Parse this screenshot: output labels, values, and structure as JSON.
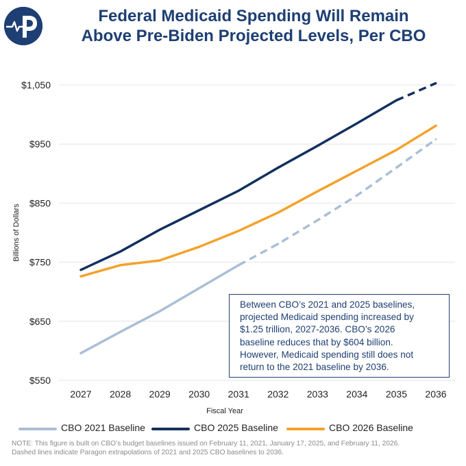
{
  "title_lines": [
    "Federal Medicaid Spending Will Remain",
    "Above Pre-Biden Projected Levels, Per CBO"
  ],
  "colors": {
    "brand": "#1e3f73",
    "cbo2021": "#a9bfd6",
    "cbo2025": "#12305e",
    "cbo2026": "#f4a12a",
    "grid": "#e4e4e4"
  },
  "logo_icon": "paragon-logo-icon",
  "annotation_lines": [
    "Between CBO’s 2021 and 2025 baselines,",
    "projected Medicaid spending increased by",
    "$1.25 trillion, 2027-2036. CBO’s 2026",
    "baseline reduces that by $604 billion.",
    "However, Medicaid spending still does not",
    "return to the 2021 baseline by 2036."
  ],
  "legend": [
    {
      "label": "CBO 2021 Baseline"
    },
    {
      "label": "CBO 2025 Baseline"
    },
    {
      "label": "CBO 2026 Baseline"
    }
  ],
  "footnote_lines": [
    "NOTE: This figure is built on CBO’s budget baselines issued on February 11, 2021, January 17, 2025, and  February 11, 2026.",
    "Dashed lines indicate Paragon extrapolations of 2021 and 2025 CBO baselines to 2036."
  ],
  "chart_data": {
    "type": "line",
    "title": "Federal Medicaid Spending Will Remain Above Pre-Biden Projected Levels, Per CBO",
    "xlabel": "Fiscal Year",
    "ylabel": "Billions of Dollars",
    "x": [
      2027,
      2028,
      2029,
      2030,
      2031,
      2032,
      2033,
      2034,
      2035,
      2036
    ],
    "ylim": [
      550,
      1050
    ],
    "yticks": [
      550,
      650,
      750,
      850,
      950,
      1050
    ],
    "ytick_labels": [
      "$550",
      "$650",
      "$750",
      "$850",
      "$950",
      "$1,050"
    ],
    "grid": true,
    "legend_position": "bottom",
    "series": [
      {
        "name": "CBO 2021 Baseline",
        "values": [
          596,
          632,
          667,
          706,
          745,
          781,
          821,
          863,
          910,
          958
        ],
        "solid_through": 2031,
        "dashed_from": 2031
      },
      {
        "name": "CBO 2025 Baseline",
        "values": [
          737,
          768,
          805,
          838,
          871,
          910,
          947,
          985,
          1024,
          1053
        ],
        "solid_through": 2035,
        "dashed_from": 2035
      },
      {
        "name": "CBO 2026 Baseline",
        "values": [
          726,
          745,
          753,
          776,
          803,
          834,
          870,
          905,
          940,
          981
        ],
        "solid_through": 2036,
        "dashed_from": null
      }
    ]
  }
}
